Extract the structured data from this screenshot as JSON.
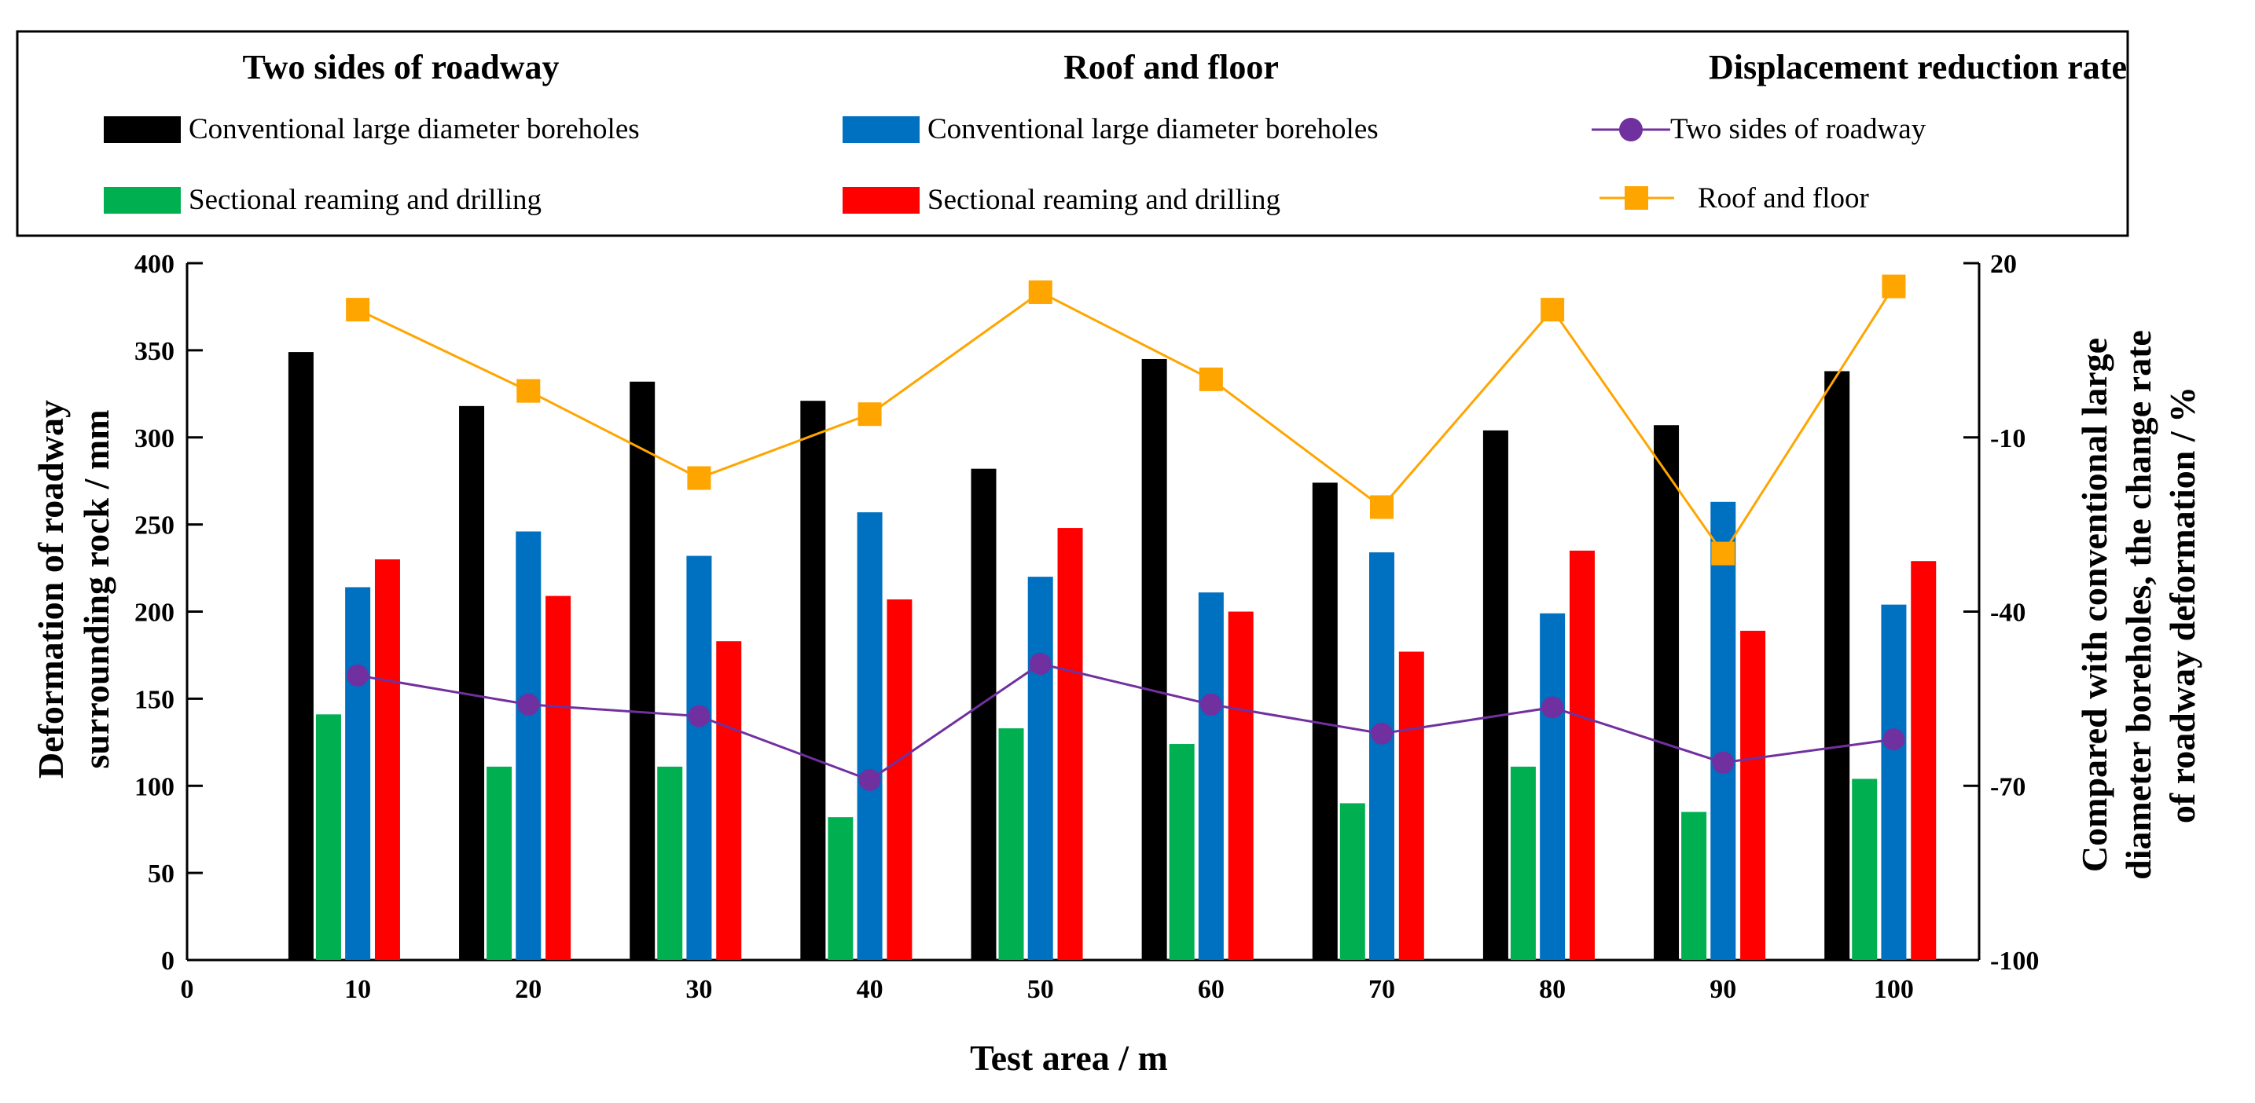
{
  "chart_data": {
    "type": "bar",
    "categories": [
      10,
      20,
      30,
      40,
      50,
      60,
      70,
      80,
      90,
      100
    ],
    "xlabel": "Test area / m",
    "x_ticks": [
      0,
      10,
      20,
      30,
      40,
      50,
      60,
      70,
      80,
      90,
      100
    ],
    "xlim": [
      0,
      105
    ],
    "ylabel": "Deformation of roadway surrounding rock / mm",
    "ylabel_lines": [
      "Deformation of roadway",
      "surrounding rock / mm"
    ],
    "ylim": [
      0,
      400
    ],
    "y_ticks": [
      0,
      50,
      100,
      150,
      200,
      250,
      300,
      350,
      400
    ],
    "y2label": "Compared with conventional large diameter boreholes, the change rate of roadway deformation / %",
    "y2label_lines": [
      "Compared with conventional large",
      "diameter boreholes, the change rate",
      "of roadway deformation / %"
    ],
    "y2lim": [
      -100,
      20
    ],
    "y2_ticks": [
      -100,
      -70,
      -40,
      -10,
      20
    ],
    "bar_series": [
      {
        "id": "sides-conventional",
        "group": "Two sides of roadway",
        "name": "Conventional large diameter boreholes",
        "color": "#000000",
        "values": [
          349,
          318,
          332,
          321,
          282,
          345,
          274,
          304,
          307,
          338
        ]
      },
      {
        "id": "sides-sectional",
        "group": "Two sides of roadway",
        "name": "Sectional reaming and drilling",
        "color": "#00b050",
        "values": [
          141,
          111,
          111,
          82,
          133,
          124,
          90,
          111,
          85,
          104
        ]
      },
      {
        "id": "roof-conventional",
        "group": "Roof and floor",
        "name": "Conventional large diameter boreholes",
        "color": "#0070c0",
        "values": [
          214,
          246,
          232,
          257,
          220,
          211,
          234,
          199,
          263,
          204
        ]
      },
      {
        "id": "roof-sectional",
        "group": "Roof and floor",
        "name": "Sectional reaming and drilling",
        "color": "#ff0000",
        "values": [
          230,
          209,
          183,
          207,
          248,
          200,
          177,
          235,
          189,
          229
        ]
      }
    ],
    "line_series": [
      {
        "id": "rate-sides",
        "group": "Displacement reduction rate",
        "name": "Two sides of roadway",
        "axis": "right",
        "color": "#7030a0",
        "marker": "circle",
        "values": [
          -51,
          -56,
          -58,
          -69,
          -49,
          -56,
          -61,
          -56.5,
          -66,
          -62
        ]
      },
      {
        "id": "rate-roof",
        "group": "Displacement reduction rate",
        "name": "Roof and floor",
        "axis": "right",
        "color": "#ffa500",
        "marker": "square",
        "values": [
          12,
          -2,
          -17,
          -6,
          15,
          0,
          -22,
          12,
          -30,
          16
        ]
      }
    ],
    "legend": {
      "placement": "top",
      "groups": [
        "Two sides of roadway",
        "Roof and floor",
        "Displacement reduction rate"
      ]
    }
  }
}
